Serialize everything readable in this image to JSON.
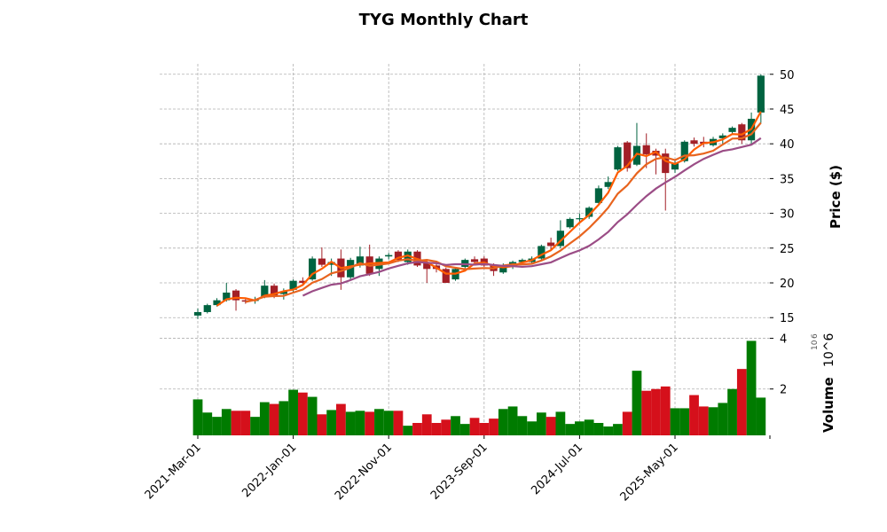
{
  "chart_data": {
    "type": "candlestick",
    "title": "TYG Monthly Chart",
    "ylabel": "Price ($)",
    "volume_ylabel": "Volume",
    "volume_exponent": "10^6",
    "volume_exponent_base": "10",
    "volume_exponent_power": "6",
    "ylim": [
      13.5,
      51.5
    ],
    "volume_ylim": [
      0.17,
      4.3
    ],
    "yticks": [
      15,
      20,
      25,
      30,
      35,
      40,
      45,
      50
    ],
    "volume_yticks": [
      2,
      4
    ],
    "xtick_labels": [
      {
        "index": 0,
        "label": "2021-Mar-01"
      },
      {
        "index": 10,
        "label": "2022-Jan-01"
      },
      {
        "index": 20,
        "label": "2022-Nov-01"
      },
      {
        "index": 30,
        "label": "2023-Sep-01"
      },
      {
        "index": 40,
        "label": "2024-Jul-01"
      },
      {
        "index": 50,
        "label": "2025-May-01"
      }
    ],
    "moving_averages": [
      {
        "window": 3,
        "color": "#ff5c00"
      },
      {
        "window": 6,
        "color": "#e8641e"
      },
      {
        "window": 12,
        "color": "#9b4d86"
      }
    ],
    "colors": {
      "up": "#006340",
      "down": "#a21f27",
      "vol_up": "#007b00",
      "vol_down": "#d5101b"
    },
    "grid": true,
    "ohlc": [
      [
        15.3,
        16.3,
        14.8,
        15.8
      ],
      [
        15.8,
        17.0,
        15.6,
        16.8
      ],
      [
        16.8,
        17.8,
        16.6,
        17.5
      ],
      [
        17.5,
        20.0,
        17.3,
        18.6
      ],
      [
        18.9,
        19.1,
        16.0,
        17.5
      ],
      [
        17.5,
        17.8,
        17.0,
        17.3
      ],
      [
        17.4,
        18.0,
        17.0,
        17.6
      ],
      [
        18.0,
        20.4,
        17.8,
        19.6
      ],
      [
        19.6,
        19.9,
        17.8,
        18.0
      ],
      [
        18.4,
        19.2,
        17.6,
        18.8
      ],
      [
        19.0,
        20.5,
        18.7,
        20.3
      ],
      [
        20.3,
        20.8,
        19.6,
        20.0
      ],
      [
        20.5,
        23.8,
        20.3,
        23.5
      ],
      [
        23.5,
        25.1,
        22.3,
        22.6
      ],
      [
        22.6,
        23.5,
        21.0,
        23.0
      ],
      [
        23.5,
        24.8,
        19.0,
        20.8
      ],
      [
        20.8,
        23.6,
        20.5,
        23.3
      ],
      [
        22.5,
        25.2,
        22.2,
        23.8
      ],
      [
        23.8,
        25.5,
        21.0,
        21.3
      ],
      [
        22.0,
        23.8,
        21.0,
        23.5
      ],
      [
        23.8,
        24.3,
        23.4,
        24.0
      ],
      [
        24.5,
        24.7,
        23.0,
        23.3
      ],
      [
        23.0,
        24.8,
        22.6,
        24.5
      ],
      [
        24.5,
        24.7,
        22.3,
        22.5
      ],
      [
        23.0,
        23.3,
        20.0,
        22.0
      ],
      [
        22.5,
        22.8,
        21.5,
        22.0
      ],
      [
        22.0,
        22.2,
        20.0,
        20.0
      ],
      [
        20.5,
        22.3,
        20.3,
        22.0
      ],
      [
        22.3,
        23.5,
        22.0,
        23.3
      ],
      [
        23.4,
        23.8,
        22.6,
        23.0
      ],
      [
        23.5,
        23.8,
        22.3,
        22.5
      ],
      [
        22.5,
        22.8,
        21.0,
        21.7
      ],
      [
        21.5,
        22.8,
        21.3,
        22.5
      ],
      [
        22.5,
        23.2,
        22.0,
        23.0
      ],
      [
        23.0,
        23.5,
        22.6,
        23.3
      ],
      [
        23.0,
        23.8,
        22.8,
        23.5
      ],
      [
        23.5,
        25.5,
        23.3,
        25.3
      ],
      [
        25.8,
        26.5,
        24.6,
        25.3
      ],
      [
        25.3,
        29.0,
        25.0,
        27.5
      ],
      [
        28.0,
        29.4,
        27.8,
        29.2
      ],
      [
        29.2,
        30.0,
        28.8,
        29.3
      ],
      [
        29.5,
        31.0,
        29.2,
        30.8
      ],
      [
        31.5,
        34.0,
        31.2,
        33.6
      ],
      [
        33.8,
        35.3,
        33.5,
        34.5
      ],
      [
        36.3,
        39.7,
        36.1,
        39.5
      ],
      [
        40.2,
        40.4,
        36.0,
        36.5
      ],
      [
        37.0,
        43.0,
        36.8,
        39.7
      ],
      [
        39.8,
        41.5,
        36.5,
        38.5
      ],
      [
        39.0,
        39.3,
        35.6,
        38.3
      ],
      [
        38.6,
        39.3,
        30.4,
        35.8
      ],
      [
        36.3,
        37.6,
        35.8,
        37.2
      ],
      [
        37.5,
        40.5,
        37.3,
        40.3
      ],
      [
        40.5,
        40.9,
        39.6,
        40.0
      ],
      [
        40.3,
        41.0,
        39.5,
        40.0
      ],
      [
        39.8,
        41.0,
        39.6,
        40.7
      ],
      [
        40.8,
        41.5,
        39.8,
        41.2
      ],
      [
        41.7,
        42.5,
        41.3,
        42.3
      ],
      [
        42.8,
        43.0,
        40.0,
        40.5
      ],
      [
        40.5,
        44.5,
        39.8,
        43.6
      ],
      [
        44.5,
        50.0,
        43.0,
        49.8
      ]
    ],
    "volume_millions": [
      1.59,
      1.07,
      0.9,
      1.21,
      1.14,
      1.14,
      0.9,
      1.48,
      1.41,
      1.52,
      1.97,
      1.86,
      1.69,
      1.0,
      1.17,
      1.41,
      1.1,
      1.14,
      1.1,
      1.21,
      1.14,
      1.14,
      0.55,
      0.66,
      1.0,
      0.66,
      0.79,
      0.93,
      0.62,
      0.86,
      0.66,
      0.83,
      1.21,
      1.31,
      0.93,
      0.72,
      1.07,
      0.9,
      1.1,
      0.62,
      0.72,
      0.79,
      0.66,
      0.52,
      0.62,
      1.1,
      2.72,
      1.93,
      2.0,
      2.1,
      1.24,
      1.24,
      1.76,
      1.31,
      1.28,
      1.45,
      2.0,
      2.79,
      3.9,
      1.66
    ]
  }
}
